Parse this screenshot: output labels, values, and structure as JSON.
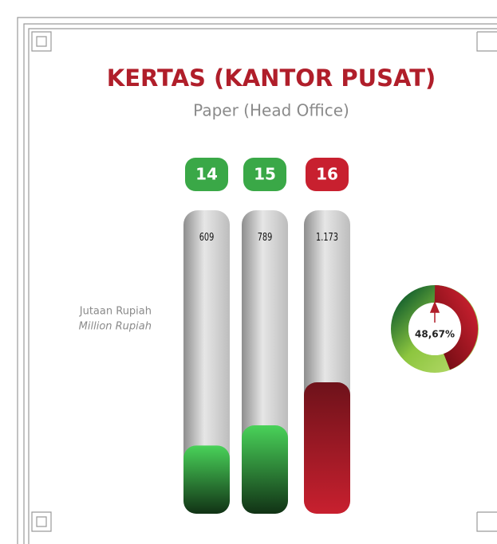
{
  "chart_data": {
    "type": "bar",
    "title": "KERTAS (KANTOR PUSAT)",
    "subtitle": "Paper (Head Office)",
    "ylabel": "Jutaan Rupiah",
    "ylabel_en": "Million Rupiah",
    "categories": [
      "14",
      "15",
      "16"
    ],
    "values": [
      609,
      789,
      1173
    ],
    "value_labels": [
      "609",
      "789",
      "1.173"
    ],
    "colors": [
      "#3aa847",
      "#3aa847",
      "#c8202f"
    ],
    "growth": {
      "value": 48.67,
      "label": "48,67%"
    }
  }
}
